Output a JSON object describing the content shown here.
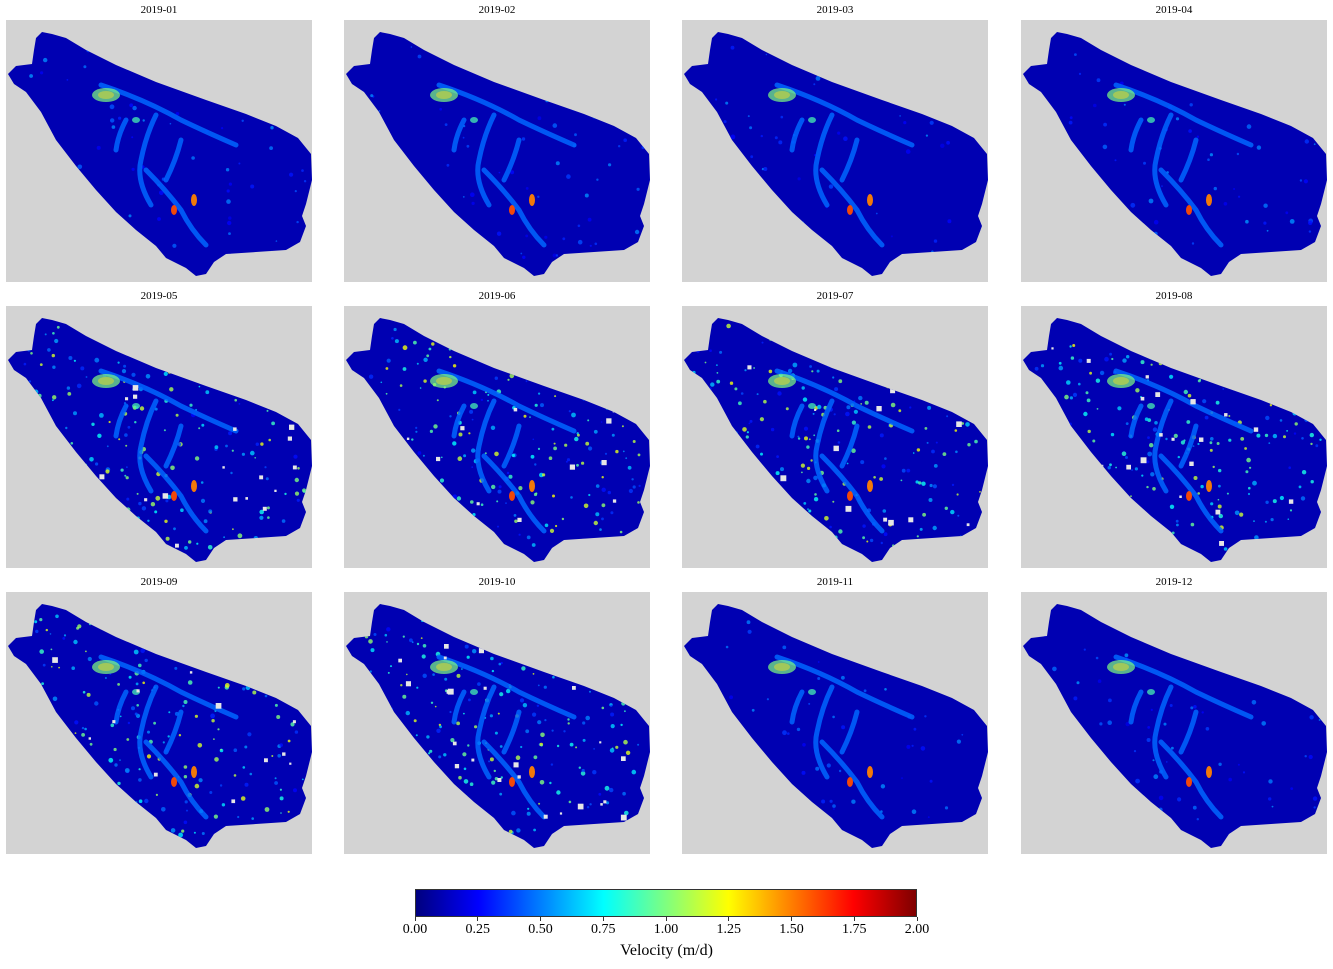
{
  "figure": {
    "panels": [
      "2019-01",
      "2019-02",
      "2019-03",
      "2019-04",
      "2019-05",
      "2019-06",
      "2019-07",
      "2019-08",
      "2019-09",
      "2019-10",
      "2019-11",
      "2019-12"
    ],
    "background_color": "#d3d3d3",
    "outside_area_color": "#ffffff"
  },
  "chart_data": {
    "type": "heatmap",
    "description_of_values": "monthly glacier surface velocity maps",
    "panels": [
      "2019-01",
      "2019-02",
      "2019-03",
      "2019-04",
      "2019-05",
      "2019-06",
      "2019-07",
      "2019-08",
      "2019-09",
      "2019-10",
      "2019-11",
      "2019-12"
    ],
    "colorbar": {
      "label": "Velocity (m/d)",
      "vmin": 0.0,
      "vmax": 2.0,
      "ticks": [
        "0.00",
        "0.25",
        "0.50",
        "0.75",
        "1.00",
        "1.25",
        "1.50",
        "1.75",
        "2.00"
      ],
      "colormap": "jet",
      "colors": [
        "#00007f",
        "#0000ff",
        "#007fff",
        "#00ffff",
        "#7fff7f",
        "#ffff00",
        "#ff7f00",
        "#ff0000",
        "#7f0000"
      ]
    },
    "max_velocity_feature_approx": 1.6,
    "typical_background_velocity_approx": 0.1
  }
}
